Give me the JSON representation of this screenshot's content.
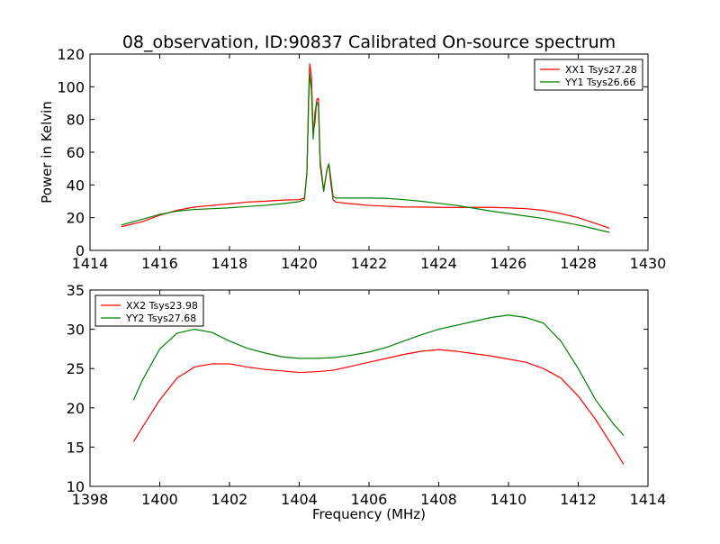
{
  "figure": {
    "title": "08_observation, ID:90837 Calibrated On-source spectrum",
    "xlabel": "Frequency (MHz)"
  },
  "chart_data": [
    {
      "type": "line",
      "title": "08_observation, ID:90837 Calibrated On-source spectrum",
      "xlabel": "",
      "ylabel": "Power in Kelvin",
      "xlim": [
        1414,
        1430
      ],
      "ylim": [
        0,
        120
      ],
      "xticks": [
        1414,
        1416,
        1418,
        1420,
        1422,
        1424,
        1426,
        1428,
        1430
      ],
      "yticks": [
        0,
        20,
        40,
        60,
        80,
        100,
        120
      ],
      "grid": false,
      "legend_position": "top-right",
      "series": [
        {
          "name": "XX1 Tsys27.28",
          "color": "#ff0000",
          "x": [
            1414.9,
            1415.5,
            1416.0,
            1416.5,
            1417.0,
            1417.5,
            1418.0,
            1418.5,
            1419.0,
            1419.5,
            1420.0,
            1420.15,
            1420.22,
            1420.27,
            1420.3,
            1420.35,
            1420.4,
            1420.45,
            1420.5,
            1420.55,
            1420.6,
            1420.7,
            1420.8,
            1420.85,
            1420.9,
            1420.97,
            1421.05,
            1421.5,
            1422.0,
            1422.5,
            1423.0,
            1423.5,
            1424.0,
            1424.5,
            1425.0,
            1425.5,
            1426.0,
            1426.5,
            1427.0,
            1427.5,
            1428.0,
            1428.5,
            1428.9
          ],
          "y": [
            14.5,
            17.5,
            21.5,
            24.5,
            26.5,
            27.5,
            28.5,
            29.5,
            30.0,
            30.7,
            31.0,
            32.0,
            48.0,
            95.0,
            114.0,
            106.0,
            72.0,
            78.0,
            92.0,
            93.0,
            55.0,
            37.0,
            50.0,
            52.0,
            42.0,
            31.0,
            29.5,
            28.5,
            27.5,
            27.0,
            26.5,
            26.5,
            26.3,
            26.2,
            26.3,
            26.3,
            26.0,
            25.5,
            24.5,
            22.5,
            20.0,
            16.5,
            13.5
          ]
        },
        {
          "name": "YY1 Tsys26.66",
          "color": "#008000",
          "x": [
            1414.9,
            1415.5,
            1416.0,
            1416.5,
            1417.0,
            1417.5,
            1418.0,
            1418.5,
            1419.0,
            1419.5,
            1420.0,
            1420.15,
            1420.22,
            1420.27,
            1420.3,
            1420.35,
            1420.4,
            1420.45,
            1420.5,
            1420.55,
            1420.6,
            1420.7,
            1420.8,
            1420.85,
            1420.9,
            1420.97,
            1421.05,
            1421.5,
            1422.0,
            1422.5,
            1423.0,
            1423.5,
            1424.0,
            1424.5,
            1425.0,
            1425.5,
            1426.0,
            1426.5,
            1427.0,
            1427.5,
            1428.0,
            1428.5,
            1428.9
          ],
          "y": [
            15.5,
            19.0,
            22.0,
            24.0,
            25.0,
            25.5,
            26.0,
            26.8,
            27.5,
            28.5,
            29.8,
            31.0,
            47.0,
            92.0,
            108.0,
            98.0,
            68.0,
            84.0,
            91.0,
            88.0,
            52.0,
            36.0,
            50.0,
            53.0,
            45.0,
            33.0,
            32.0,
            32.0,
            32.0,
            31.8,
            31.0,
            30.0,
            28.8,
            27.5,
            25.8,
            24.0,
            22.5,
            21.0,
            19.5,
            17.5,
            15.5,
            13.0,
            11.0
          ]
        }
      ]
    },
    {
      "type": "line",
      "title": "",
      "xlabel": "Frequency (MHz)",
      "ylabel": "",
      "xlim": [
        1398,
        1414
      ],
      "ylim": [
        10,
        35
      ],
      "xticks": [
        1398,
        1400,
        1402,
        1404,
        1406,
        1408,
        1410,
        1412,
        1414
      ],
      "yticks": [
        10,
        15,
        20,
        25,
        30,
        35
      ],
      "grid": false,
      "legend_position": "top-left",
      "series": [
        {
          "name": "XX2 Tsys23.98",
          "color": "#ff0000",
          "x": [
            1399.25,
            1399.5,
            1400.0,
            1400.5,
            1401.0,
            1401.5,
            1402.0,
            1402.5,
            1403.0,
            1403.5,
            1404.0,
            1404.5,
            1405.0,
            1405.5,
            1406.0,
            1406.5,
            1407.0,
            1407.5,
            1408.0,
            1408.5,
            1409.0,
            1409.5,
            1410.0,
            1410.5,
            1411.0,
            1411.5,
            1412.0,
            1412.5,
            1413.0,
            1413.3
          ],
          "y": [
            15.7,
            17.5,
            21.0,
            23.8,
            25.2,
            25.6,
            25.6,
            25.2,
            24.9,
            24.7,
            24.5,
            24.6,
            24.8,
            25.3,
            25.8,
            26.3,
            26.8,
            27.2,
            27.4,
            27.2,
            26.9,
            26.6,
            26.2,
            25.8,
            25.0,
            23.8,
            21.5,
            18.5,
            15.0,
            12.8
          ]
        },
        {
          "name": "YY2 Tsys27.68",
          "color": "#008000",
          "x": [
            1399.25,
            1399.5,
            1400.0,
            1400.5,
            1401.0,
            1401.5,
            1402.0,
            1402.5,
            1403.0,
            1403.5,
            1404.0,
            1404.5,
            1405.0,
            1405.5,
            1406.0,
            1406.5,
            1407.0,
            1407.5,
            1408.0,
            1408.5,
            1409.0,
            1409.5,
            1410.0,
            1410.5,
            1411.0,
            1411.5,
            1412.0,
            1412.5,
            1413.0,
            1413.3
          ],
          "y": [
            21.0,
            23.5,
            27.5,
            29.5,
            30.0,
            29.6,
            28.5,
            27.6,
            27.0,
            26.5,
            26.3,
            26.3,
            26.4,
            26.7,
            27.1,
            27.7,
            28.5,
            29.3,
            30.0,
            30.5,
            31.0,
            31.5,
            31.8,
            31.5,
            30.8,
            28.5,
            25.0,
            21.0,
            18.0,
            16.5
          ]
        }
      ]
    }
  ]
}
